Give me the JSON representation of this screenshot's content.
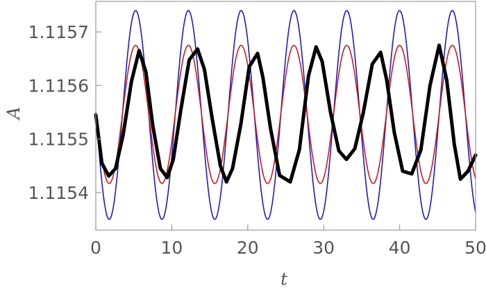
{
  "chart_data": {
    "type": "line",
    "title": "",
    "xlabel": "t",
    "ylabel": "A",
    "xlim": [
      0,
      50
    ],
    "ylim": [
      1.11533,
      1.115757
    ],
    "xticks": [
      0,
      10,
      20,
      30,
      40,
      50
    ],
    "xtick_labels": [
      "0",
      "10",
      "20",
      "30",
      "40",
      "50"
    ],
    "yticks": [
      1.1154,
      1.1155,
      1.1156,
      1.1157
    ],
    "ytick_labels": [
      "1.1154",
      "1.1155",
      "1.1156",
      "1.1157"
    ],
    "grid": false,
    "legend": "none",
    "series": [
      {
        "kind": "sinusoid",
        "color": "#1a1acc",
        "stroke_width": 1.6,
        "amplitude": 0.000195,
        "offset": 1.115545,
        "period": 6.95,
        "phase": 3.5
      },
      {
        "kind": "sinusoid",
        "color": "#cc1a1a",
        "stroke_width": 1.6,
        "amplitude": 0.000129,
        "offset": 1.115546,
        "period": 6.95,
        "phase": 3.5
      },
      {
        "kind": "points",
        "color": "#000000",
        "stroke_width": 5,
        "x": [
          0,
          0.8,
          1.7,
          2.6,
          3.6,
          4.7,
          5.7,
          6.6,
          7.5,
          8.5,
          9.4,
          10.2,
          11.2,
          12.3,
          13.4,
          14.3,
          15.3,
          16.4,
          17.2,
          18.0,
          19.1,
          20.2,
          21.3,
          22.0,
          23.0,
          24.2,
          25.6,
          26.8,
          28.0,
          29.0,
          29.8,
          30.9,
          32.0,
          33.0,
          34.1,
          35.2,
          36.4,
          37.5,
          38.3,
          39.3,
          40.4,
          41.6,
          42.8,
          44.0,
          45.2,
          46.2,
          47.2,
          48.0,
          49.0,
          50.0
        ],
        "y": [
          1.115545,
          1.115455,
          1.115431,
          1.115445,
          1.115508,
          1.115608,
          1.115665,
          1.115625,
          1.115525,
          1.115445,
          1.115428,
          1.115462,
          1.115555,
          1.115648,
          1.115668,
          1.11563,
          1.11554,
          1.11545,
          1.11542,
          1.115445,
          1.115528,
          1.115635,
          1.11566,
          1.115615,
          1.11552,
          1.115432,
          1.11542,
          1.11548,
          1.115618,
          1.115672,
          1.115645,
          1.11555,
          1.115478,
          1.115462,
          1.115482,
          1.115548,
          1.11564,
          1.115662,
          1.11561,
          1.115512,
          1.11544,
          1.115435,
          1.11548,
          1.1156,
          1.115675,
          1.11561,
          1.11549,
          1.115425,
          1.11544,
          1.11547
        ]
      }
    ]
  }
}
